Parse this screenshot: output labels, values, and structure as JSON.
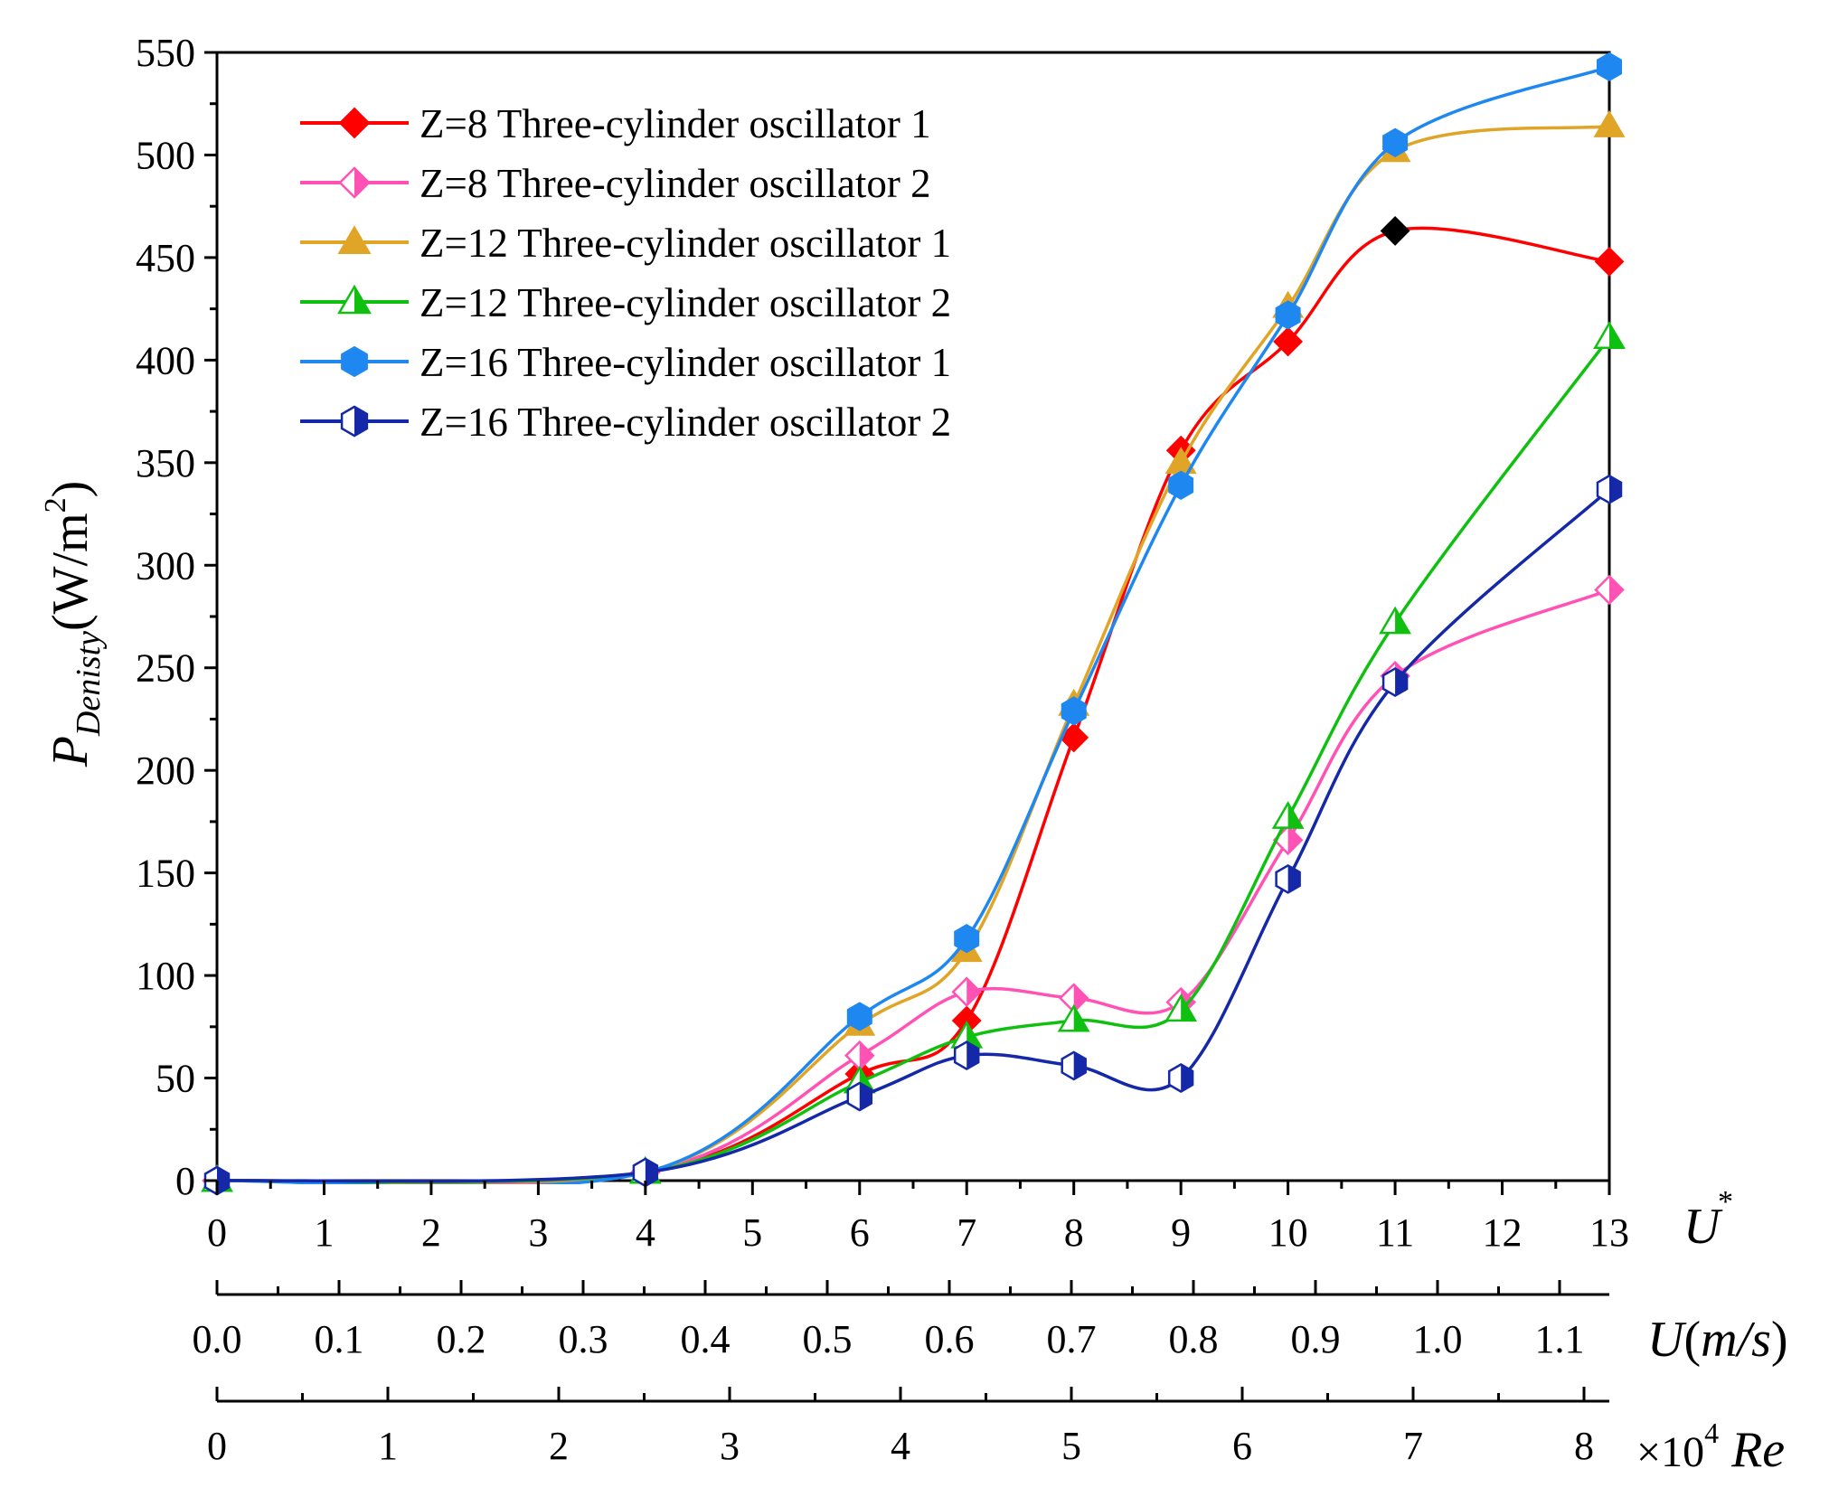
{
  "chart_data": {
    "type": "line",
    "ylabel_main": "P",
    "ylabel_sub": "Denisty",
    "ylabel_unit_open": "(W/m",
    "ylabel_unit_sup": "2",
    "ylabel_unit_close": ")",
    "ylim": [
      0,
      550
    ],
    "yticks": [
      "0",
      "50",
      "100",
      "150",
      "200",
      "250",
      "300",
      "350",
      "400",
      "450",
      "500",
      "550"
    ],
    "xlim": [
      0,
      13
    ],
    "x_axes": [
      {
        "id": "ustar",
        "title_main": "U",
        "title_sup": "*",
        "title_rest": "",
        "ticks": [
          "0",
          "1",
          "2",
          "3",
          "4",
          "5",
          "6",
          "7",
          "8",
          "9",
          "10",
          "11",
          "12",
          "13"
        ]
      },
      {
        "id": "u",
        "title_main": "U",
        "title_sup": "",
        "title_rest": "(m/s)",
        "ticks": [
          "0.0",
          "0.1",
          "0.2",
          "0.3",
          "0.4",
          "0.5",
          "0.6",
          "0.7",
          "0.8",
          "0.9",
          "1.0",
          "1.1"
        ]
      },
      {
        "id": "re",
        "title_main": "Re",
        "title_prefix": "×10",
        "title_sup": "4",
        "ticks": [
          "0",
          "1",
          "2",
          "3",
          "4",
          "5",
          "6",
          "7",
          "8"
        ]
      }
    ],
    "series": [
      {
        "name": "Z=8 Three-cylinder oscillator 1",
        "color": "#ff0000",
        "marker": "diamond",
        "fill": "full",
        "x": [
          0,
          4,
          6,
          7,
          8,
          9,
          10,
          11,
          13
        ],
        "y": [
          0,
          4,
          52,
          78,
          216,
          356,
          409,
          463,
          448
        ]
      },
      {
        "name": "Z=8 Three-cylinder oscillator 2",
        "color": "#ff52b4",
        "marker": "diamond",
        "fill": "half",
        "x": [
          0,
          4,
          6,
          7,
          8,
          9,
          10,
          11,
          13
        ],
        "y": [
          0,
          4,
          61,
          92,
          89,
          87,
          166,
          246,
          288
        ]
      },
      {
        "name": "Z=12 Three-cylinder oscillator 1",
        "color": "#e0a426",
        "marker": "triangle",
        "fill": "full",
        "x": [
          0,
          4,
          6,
          7,
          8,
          9,
          10,
          11,
          13
        ],
        "y": [
          0,
          4,
          76,
          112,
          232,
          350,
          426,
          502,
          514
        ]
      },
      {
        "name": "Z=12 Three-cylinder oscillator 2",
        "color": "#10c010",
        "marker": "triangle",
        "fill": "half",
        "x": [
          0,
          4,
          6,
          7,
          8,
          9,
          10,
          11,
          13
        ],
        "y": [
          0,
          4,
          48,
          70,
          78,
          83,
          177,
          272,
          411
        ]
      },
      {
        "name": "Z=16 Three-cylinder oscillator 1",
        "color": "#1e88f0",
        "marker": "hexagon",
        "fill": "full",
        "x": [
          0,
          4,
          6,
          7,
          8,
          9,
          10,
          11,
          13
        ],
        "y": [
          0,
          4,
          80,
          118,
          229,
          339,
          422,
          506,
          543
        ]
      },
      {
        "name": "Z=16 Three-cylinder oscillator 2",
        "color": "#1428a8",
        "marker": "hexagon",
        "fill": "half",
        "x": [
          0,
          4,
          6,
          7,
          8,
          9,
          10,
          11,
          13
        ],
        "y": [
          0,
          4,
          41,
          61,
          56,
          50,
          147,
          243,
          337
        ]
      }
    ],
    "highlight_point": {
      "series": "Z=8 Three-cylinder oscillator 1",
      "x": 11,
      "y": 463,
      "color": "#000000"
    },
    "legend_position": "top-left"
  }
}
